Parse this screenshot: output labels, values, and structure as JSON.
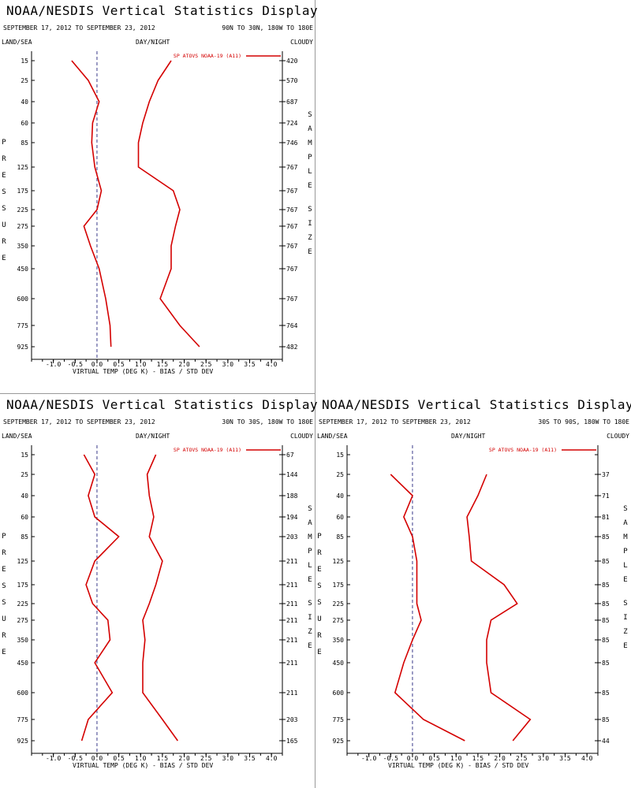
{
  "colors": {
    "series": "#d40000",
    "zero_line": "#3a3a8a",
    "axis": "#000000",
    "divider": "#999999"
  },
  "common": {
    "title": "NOAA/NESDIS Vertical Statistics Display",
    "date_range": "SEPTEMBER 17, 2012 TO SEPTEMBER 23, 2012",
    "land_sea": "LAND/SEA",
    "day_night": "DAY/NIGHT",
    "cloudy": "CLOUDY",
    "pressure_label": "PRESSURE",
    "sample_size_label": "SAMPLE SIZE",
    "xlabel": "VIRTUAL TEMP (DEG K) - BIAS / STD DEV",
    "legend": "SP ATOVS NOAA-19 (A11)"
  },
  "chart_data": [
    {
      "type": "line",
      "region": "90N TO 30N, 180W TO 180E",
      "xlim": [
        -1.5,
        4.25
      ],
      "xticks": [
        "-1.0",
        "-0.5",
        "0.0",
        "0.5",
        "1.0",
        "1.5",
        "2.0",
        "2.5",
        "3.0",
        "3.5",
        "4.0"
      ],
      "xtick_values": [
        -1.0,
        -0.5,
        0.0,
        0.5,
        1.0,
        1.5,
        2.0,
        2.5,
        3.0,
        3.5,
        4.0
      ],
      "pressure_levels": [
        "15",
        "25",
        "40",
        "60",
        "85",
        "125",
        "175",
        "225",
        "275",
        "350",
        "450",
        "600",
        "775",
        "925"
      ],
      "sample_sizes": [
        "420",
        "570",
        "687",
        "724",
        "746",
        "767",
        "767",
        "767",
        "767",
        "767",
        "767",
        "767",
        "764",
        "482"
      ],
      "bias": [
        -0.58,
        -0.2,
        0.05,
        -0.1,
        -0.12,
        -0.05,
        0.1,
        0.0,
        -0.3,
        -0.15,
        0.05,
        0.2,
        0.3,
        0.32
      ],
      "std_dev": [
        1.7,
        1.4,
        1.2,
        1.05,
        0.95,
        0.95,
        1.75,
        1.9,
        1.8,
        1.7,
        1.7,
        1.45,
        1.9,
        2.35
      ]
    },
    {
      "type": "line",
      "region": "30N TO 30S, 180W TO 180E",
      "xlim": [
        -1.5,
        4.25
      ],
      "xticks": [
        "-1.0",
        "-0.5",
        "0.0",
        "0.5",
        "1.0",
        "1.5",
        "2.0",
        "2.5",
        "3.0",
        "3.5",
        "4.0"
      ],
      "xtick_values": [
        -1.0,
        -0.5,
        0.0,
        0.5,
        1.0,
        1.5,
        2.0,
        2.5,
        3.0,
        3.5,
        4.0
      ],
      "pressure_levels": [
        "15",
        "25",
        "40",
        "60",
        "85",
        "125",
        "175",
        "225",
        "275",
        "350",
        "450",
        "600",
        "775",
        "925"
      ],
      "sample_sizes": [
        "67",
        "144",
        "188",
        "194",
        "203",
        "211",
        "211",
        "211",
        "211",
        "211",
        "211",
        "211",
        "203",
        "165"
      ],
      "bias": [
        -0.3,
        -0.05,
        -0.2,
        -0.05,
        0.5,
        -0.05,
        -0.25,
        -0.1,
        0.25,
        0.3,
        -0.05,
        0.35,
        -0.2,
        -0.35
      ],
      "std_dev": [
        1.35,
        1.15,
        1.2,
        1.3,
        1.2,
        1.5,
        1.35,
        1.2,
        1.05,
        1.1,
        1.05,
        1.05,
        1.5,
        1.85
      ]
    },
    {
      "type": "line",
      "region": "30S TO 90S, 180W TO 180E",
      "xlim": [
        -1.5,
        4.25
      ],
      "xticks": [
        "-1.0",
        "-0.5",
        "0.0",
        "0.5",
        "1.0",
        "1.5",
        "2.0",
        "2.5",
        "3.0",
        "3.5",
        "4.0"
      ],
      "xtick_values": [
        -1.0,
        -0.5,
        0.0,
        0.5,
        1.0,
        1.5,
        2.0,
        2.5,
        3.0,
        3.5,
        4.0
      ],
      "pressure_levels": [
        "15",
        "25",
        "40",
        "60",
        "85",
        "125",
        "175",
        "225",
        "275",
        "350",
        "450",
        "600",
        "775",
        "925"
      ],
      "sample_sizes": [
        "",
        "37",
        "71",
        "81",
        "85",
        "85",
        "85",
        "85",
        "85",
        "85",
        "85",
        "85",
        "85",
        "44"
      ],
      "bias": [
        null,
        -0.5,
        0.0,
        -0.2,
        0.0,
        0.1,
        0.1,
        0.1,
        0.2,
        0.0,
        -0.2,
        -0.4,
        0.25,
        1.2
      ],
      "std_dev": [
        null,
        1.7,
        1.5,
        1.25,
        1.3,
        1.35,
        2.1,
        2.4,
        1.8,
        1.7,
        1.7,
        1.8,
        2.7,
        2.3
      ]
    }
  ]
}
